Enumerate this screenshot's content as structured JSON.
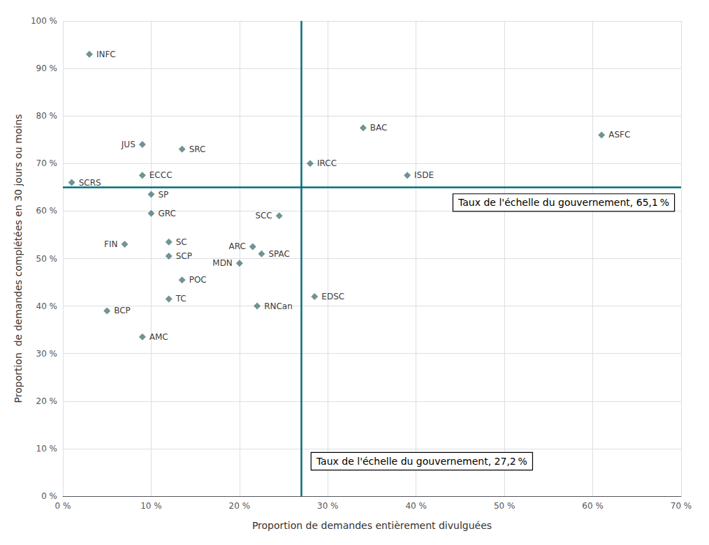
{
  "chart_data": {
    "type": "scatter",
    "xlabel": "Proportion de demandes entièrement divulguées",
    "ylabel": "Proportion  de demandes complétées en 30 jours ou moins",
    "labels": [
      "INFC",
      "SCRS",
      "JUS",
      "SRC",
      "ECCC",
      "SP",
      "GRC",
      "FIN",
      "SC",
      "SCP",
      "POC",
      "TC",
      "BCP",
      "AMC",
      "MDN",
      "ARC",
      "SPAC",
      "SCC",
      "RNCan",
      "BAC",
      "IRCC",
      "ISDE",
      "EDSC",
      "ASFC"
    ],
    "x": [
      0.03,
      0.01,
      0.09,
      0.135,
      0.09,
      0.1,
      0.1,
      0.07,
      0.12,
      0.12,
      0.135,
      0.12,
      0.05,
      0.09,
      0.2,
      0.215,
      0.225,
      0.245,
      0.22,
      0.34,
      0.28,
      0.39,
      0.285,
      0.61
    ],
    "values": [
      0.93,
      0.66,
      0.74,
      0.73,
      0.675,
      0.635,
      0.595,
      0.53,
      0.535,
      0.505,
      0.455,
      0.415,
      0.39,
      0.335,
      0.49,
      0.525,
      0.51,
      0.59,
      0.4,
      0.775,
      0.7,
      0.675,
      0.42,
      0.76
    ],
    "color": "#4d7878",
    "marker": "diamond",
    "reference_lines": [
      {
        "axis": "y",
        "value": 0.651,
        "label": "Taux de l'échelle du gouvernement, 65,1 %",
        "color": "#006e7a"
      },
      {
        "axis": "x",
        "value": 0.272,
        "label": "Taux de l'échelle du gouvernement, 27,2 %",
        "color": "#006e7a"
      }
    ],
    "xlim": [
      0,
      0.7
    ],
    "ylim": [
      0,
      1.0
    ],
    "xticks": [
      {
        "value": 0,
        "label": "0 %"
      },
      {
        "value": 0.1,
        "label": "10 %"
      },
      {
        "value": 0.2,
        "label": "20 %"
      },
      {
        "value": 0.3,
        "label": "30 %"
      },
      {
        "value": 0.4,
        "label": "40 %"
      },
      {
        "value": 0.5,
        "label": "50 %"
      },
      {
        "value": 0.6,
        "label": "60 %"
      },
      {
        "value": 0.7,
        "label": "70 %"
      }
    ],
    "yticks": [
      {
        "value": 0,
        "label": "0 %"
      },
      {
        "value": 0.1,
        "label": "10 %"
      },
      {
        "value": 0.2,
        "label": "20 %"
      },
      {
        "value": 0.3,
        "label": "30 %"
      },
      {
        "value": 0.4,
        "label": "40 %"
      },
      {
        "value": 0.5,
        "label": "50 %"
      },
      {
        "value": 0.6,
        "label": "60 %"
      },
      {
        "value": 0.7,
        "label": "70 %"
      },
      {
        "value": 0.8,
        "label": "80 %"
      },
      {
        "value": 0.9,
        "label": "90 %"
      },
      {
        "value": 1.0,
        "label": "100 %"
      }
    ],
    "grid": true
  }
}
